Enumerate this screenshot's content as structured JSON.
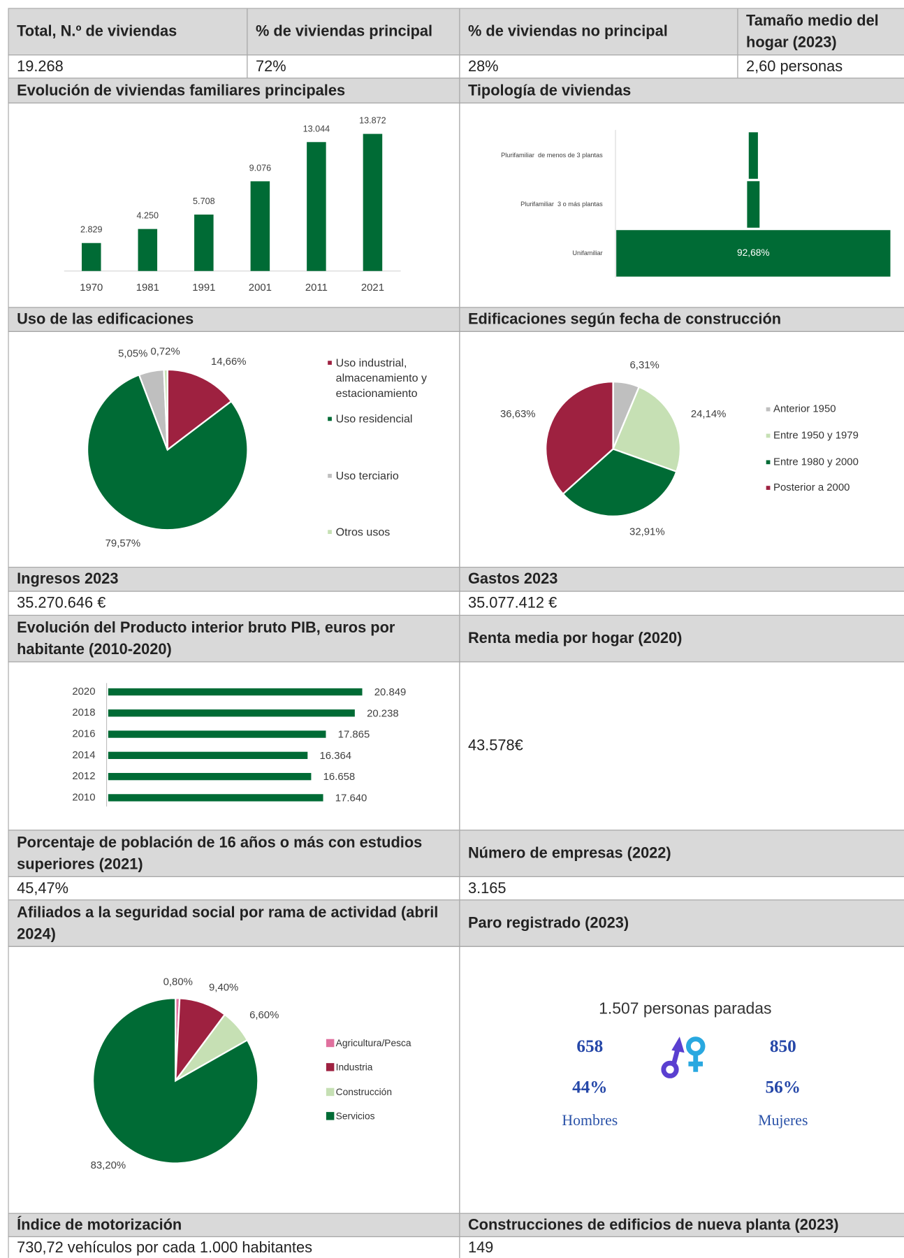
{
  "summary": {
    "headers": [
      "Total, N.º de viviendas",
      "% de viviendas principal",
      "% de viviendas no principal",
      "Tamaño medio del hogar (2023)"
    ],
    "values": [
      "19.268",
      "72%",
      "28%",
      "2,60 personas"
    ]
  },
  "chart_data": [
    {
      "type": "bar",
      "title": "Evolución de viviendas familiares principales",
      "categories": [
        "1970",
        "1981",
        "1991",
        "2001",
        "2011",
        "2021"
      ],
      "values": [
        2829,
        4250,
        5708,
        9076,
        13044,
        13872
      ],
      "value_labels": [
        "2.829",
        "4.250",
        "5.708",
        "9.076",
        "13.044",
        "13.872"
      ],
      "color": "#006b35"
    },
    {
      "type": "funnel",
      "title": "Tipología de viviendas",
      "categories": [
        "Plurifamiliar  de menos de 3 plantas",
        "Plurifamiliar  3 o más plantas",
        "Unifamiliar"
      ],
      "values": [
        3.1,
        4.22,
        92.68
      ],
      "value_labels": [
        null,
        null,
        "92,68%"
      ],
      "color": "#006b35"
    },
    {
      "type": "pie",
      "title": "Uso de las edificaciones",
      "categories": [
        "Uso industrial, almacenamiento y estacionamiento",
        "Uso residencial",
        "Uso terciario",
        "Otros usos"
      ],
      "values": [
        14.66,
        79.57,
        5.05,
        0.72
      ],
      "value_labels": [
        "14,66%",
        "79,57%",
        "5,05%",
        "0,72%"
      ],
      "colors": [
        "#9e2140",
        "#006b35",
        "#bfbfbf",
        "#c6e0b4"
      ]
    },
    {
      "type": "pie",
      "title": "Edificaciones según fecha de construcción",
      "categories": [
        "Anterior 1950",
        "Entre 1950 y 1979",
        "Entre 1980 y 2000",
        "Posterior a 2000"
      ],
      "values": [
        6.31,
        24.14,
        32.91,
        36.63
      ],
      "value_labels": [
        "6,31%",
        "24,14%",
        "32,91%",
        "36,63%"
      ],
      "colors": [
        "#bfbfbf",
        "#c6e0b4",
        "#006b35",
        "#9e2140"
      ]
    },
    {
      "type": "hbar",
      "title": "Evolución del Producto interior bruto PIB, euros por habitante (2010-2020)",
      "categories": [
        "2010",
        "2012",
        "2014",
        "2016",
        "2018",
        "2020"
      ],
      "values": [
        17640,
        16658,
        16364,
        17865,
        20238,
        20849
      ],
      "value_labels": [
        "17.640",
        "16.658",
        "16.364",
        "17.865",
        "20.238",
        "20.849"
      ],
      "color": "#006b35"
    },
    {
      "type": "pie",
      "title": "Afiliados a la seguridad social por rama de actividad (abril 2024)",
      "categories": [
        "Agricultura/Pesca",
        "Industria",
        "Construcción",
        "Servicios"
      ],
      "values": [
        0.8,
        9.4,
        6.6,
        83.2
      ],
      "value_labels": [
        "0,80%",
        "9,40%",
        "6,60%",
        "83,20%"
      ],
      "colors": [
        "#e0709e",
        "#9e2140",
        "#c6e0b4",
        "#006b35"
      ]
    }
  ],
  "ingresos": {
    "label": "Ingresos 2023",
    "value": "35.270.646 €"
  },
  "gastos": {
    "label": "Gastos 2023",
    "value": "35.077.412 €"
  },
  "renta": {
    "label": "Renta media por hogar (2020)",
    "value": "43.578€"
  },
  "estudios": {
    "label": "Porcentaje de población de 16 años o más con estudios superiores (2021)",
    "value": "45,47%"
  },
  "empresas": {
    "label": "Número de empresas (2022)",
    "value": "3.165"
  },
  "paro": {
    "label": "Paro registrado (2023)",
    "total": "1.507 personas paradas",
    "hombres": {
      "count": "658",
      "pct": "44%",
      "label": "Hombres"
    },
    "mujeres": {
      "count": "850",
      "pct": "56%",
      "label": "Mujeres"
    }
  },
  "motorizacion": {
    "label": "Índice de motorización",
    "value": "730,72 vehículos por cada 1.000 habitantes"
  },
  "construcciones": {
    "label": "Construcciones de edificios de nueva planta (2023)",
    "value": "149"
  }
}
